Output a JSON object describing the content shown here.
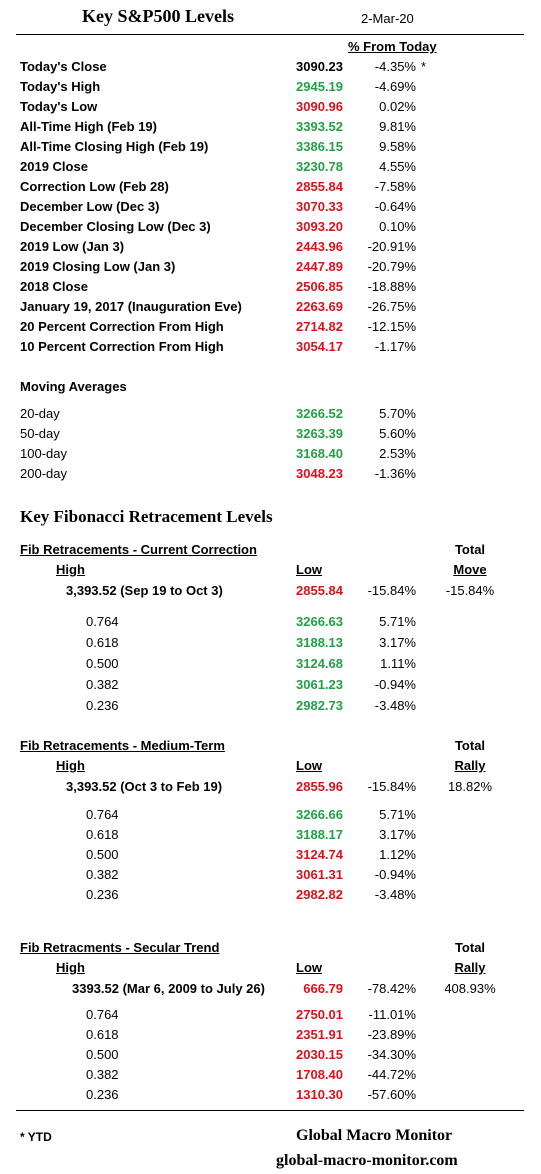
{
  "header": {
    "title": "Key S&P500 Levels",
    "date": "2-Mar-20",
    "pct_col_header": "% From Today"
  },
  "key_levels": [
    {
      "label": "Today's Close",
      "value": "3090.23",
      "pct": "-4.35%",
      "note": "*",
      "color": "black"
    },
    {
      "label": "Today's High",
      "value": "2945.19",
      "pct": "-4.69%",
      "note": "",
      "color": "green"
    },
    {
      "label": "Today's  Low",
      "value": "3090.96",
      "pct": "0.02%",
      "note": "",
      "color": "red"
    },
    {
      "label": "All-Time High (Feb 19)",
      "value": "3393.52",
      "pct": "9.81%",
      "note": "",
      "color": "green"
    },
    {
      "label": "All-Time Closing High (Feb 19)",
      "value": "3386.15",
      "pct": "9.58%",
      "note": "",
      "color": "green"
    },
    {
      "label": "2019 Close",
      "value": "3230.78",
      "pct": "4.55%",
      "note": "",
      "color": "green"
    },
    {
      "label": "Correction Low (Feb 28)",
      "value": "2855.84",
      "pct": "-7.58%",
      "note": "",
      "color": "red"
    },
    {
      "label": "December Low (Dec 3)",
      "value": "3070.33",
      "pct": "-0.64%",
      "note": "",
      "color": "red"
    },
    {
      "label": "December Closing Low  (Dec 3)",
      "value": "3093.20",
      "pct": "0.10%",
      "note": "",
      "color": "red"
    },
    {
      "label": "2019 Low  (Jan 3)",
      "value": "2443.96",
      "pct": "-20.91%",
      "note": "",
      "color": "red"
    },
    {
      "label": "2019 Closing Low (Jan 3)",
      "value": "2447.89",
      "pct": "-20.79%",
      "note": "",
      "color": "red"
    },
    {
      "label": "2018 Close",
      "value": "2506.85",
      "pct": "-18.88%",
      "note": "",
      "color": "red"
    },
    {
      "label": "January 19, 2017 (Inauguration Eve)",
      "value": "2263.69",
      "pct": "-26.75%",
      "note": "",
      "color": "red"
    },
    {
      "label": "20 Percent Correction From High",
      "value": "2714.82",
      "pct": "-12.15%",
      "note": "",
      "color": "red"
    },
    {
      "label": "10 Percent Correction From High",
      "value": "3054.17",
      "pct": "-1.17%",
      "note": "",
      "color": "red"
    }
  ],
  "moving_averages": {
    "title": "Moving Averages",
    "rows": [
      {
        "label": "20-day",
        "value": "3266.52",
        "pct": "5.70%",
        "color": "green"
      },
      {
        "label": "50-day",
        "value": "3263.39",
        "pct": "5.60%",
        "color": "green"
      },
      {
        "label": "100-day",
        "value": "3168.40",
        "pct": "2.53%",
        "color": "green"
      },
      {
        "label": "200-day",
        "value": "3048.23",
        "pct": "-1.36%",
        "color": "red"
      }
    ]
  },
  "fib_title": "Key Fibonacci Retracement Levels",
  "fib_sections": [
    {
      "title": "Fib Retracements - Current Correction",
      "total_label": "Total",
      "total_sub": "Move",
      "high_label": "High",
      "low_label": "Low",
      "high_value": "3,393.52  (Sep 19 to Oct 3)",
      "low_value": "2855.84",
      "low_pct": "-15.84%",
      "total_value": "-15.84%",
      "rows": [
        {
          "ratio": "0.764",
          "value": "3266.63",
          "pct": "5.71%",
          "color": "green"
        },
        {
          "ratio": "0.618",
          "value": "3188.13",
          "pct": "3.17%",
          "color": "green"
        },
        {
          "ratio": "0.500",
          "value": "3124.68",
          "pct": "1.11%",
          "color": "green"
        },
        {
          "ratio": "0.382",
          "value": "3061.23",
          "pct": "-0.94%",
          "color": "green"
        },
        {
          "ratio": "0.236",
          "value": "2982.73",
          "pct": "-3.48%",
          "color": "green"
        }
      ]
    },
    {
      "title": "Fib Retracements - Medium-Term",
      "total_label": "Total",
      "total_sub": "Rally",
      "high_label": "High",
      "low_label": "Low",
      "high_value": "3,393.52  (Oct 3 to Feb 19)",
      "low_value": "2855.96",
      "low_pct": "-15.84%",
      "total_value": "18.82%",
      "rows": [
        {
          "ratio": "0.764",
          "value": "3266.66",
          "pct": "5.71%",
          "color": "green"
        },
        {
          "ratio": "0.618",
          "value": "3188.17",
          "pct": "3.17%",
          "color": "green"
        },
        {
          "ratio": "0.500",
          "value": "3124.74",
          "pct": "1.12%",
          "color": "red"
        },
        {
          "ratio": "0.382",
          "value": "3061.31",
          "pct": "-0.94%",
          "color": "red"
        },
        {
          "ratio": "0.236",
          "value": "2982.82",
          "pct": "-3.48%",
          "color": "red"
        }
      ]
    },
    {
      "title": "Fib Retracments - Secular Trend",
      "total_label": "Total",
      "total_sub": "Rally",
      "high_label": "High",
      "low_label": "Low",
      "high_value": "3393.52  (Mar 6, 2009  to July 26)",
      "low_value": "666.79",
      "low_pct": "-78.42%",
      "total_value": "408.93%",
      "rows": [
        {
          "ratio": "0.764",
          "value": "2750.01",
          "pct": "-11.01%",
          "color": "red"
        },
        {
          "ratio": "0.618",
          "value": "2351.91",
          "pct": "-23.89%",
          "color": "red"
        },
        {
          "ratio": "0.500",
          "value": "2030.15",
          "pct": "-34.30%",
          "color": "red"
        },
        {
          "ratio": "0.382",
          "value": "1708.40",
          "pct": "-44.72%",
          "color": "red"
        },
        {
          "ratio": "0.236",
          "value": "1310.30",
          "pct": "-57.60%",
          "color": "red"
        }
      ]
    }
  ],
  "footer": {
    "note": "* YTD",
    "brand": "Global Macro Monitor",
    "url": "global-macro-monitor.com"
  }
}
